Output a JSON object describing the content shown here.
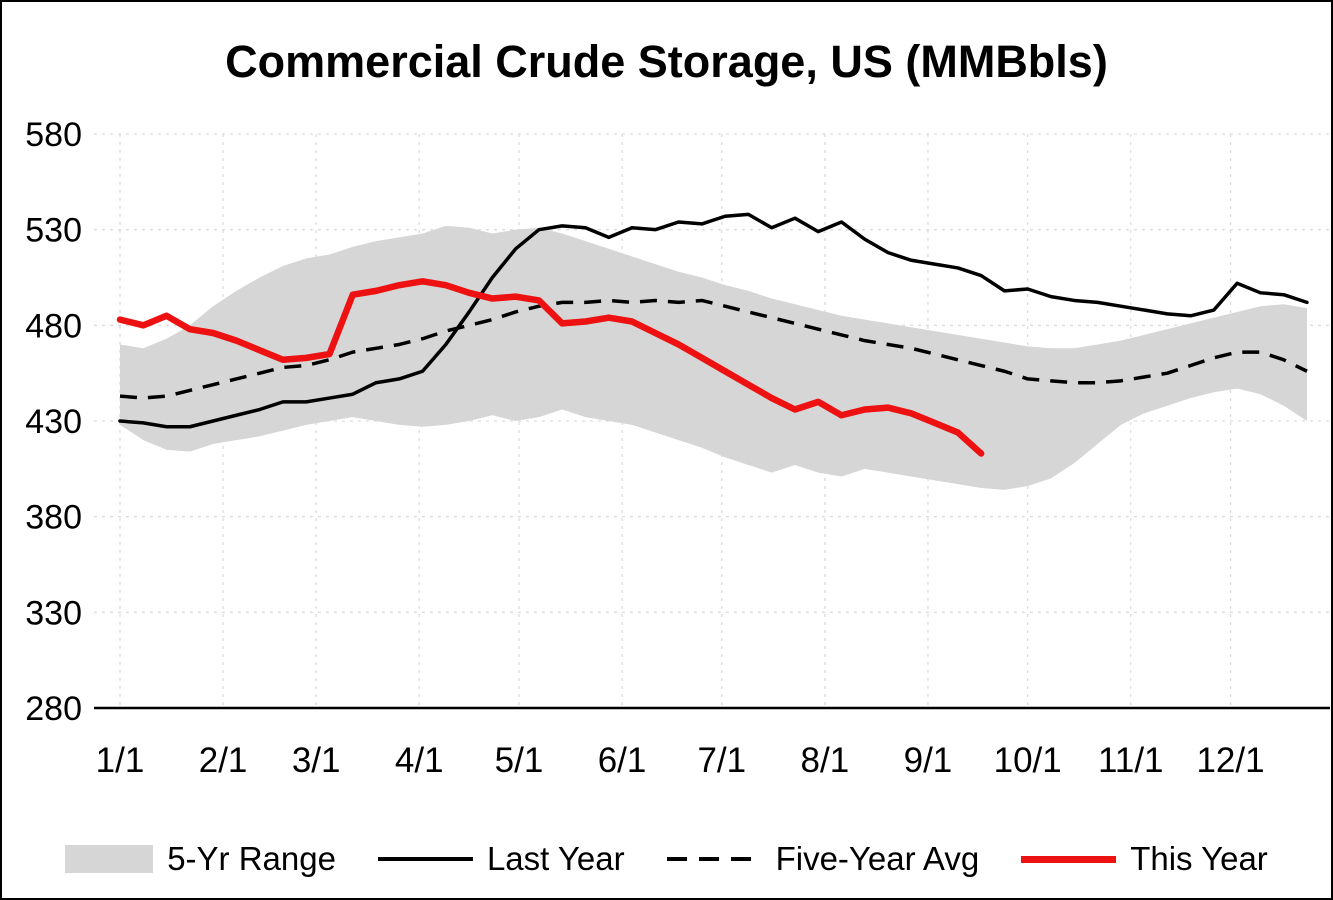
{
  "chart_data": {
    "type": "line",
    "title": "Commercial Crude Storage, US (MMBbls)",
    "xlabel": "",
    "ylabel": "",
    "ylim": [
      280,
      580
    ],
    "yticks": [
      280,
      330,
      380,
      430,
      480,
      530,
      580
    ],
    "xtick_labels": [
      "1/1",
      "2/1",
      "3/1",
      "4/1",
      "5/1",
      "6/1",
      "7/1",
      "8/1",
      "9/1",
      "10/1",
      "11/1",
      "12/1"
    ],
    "xtick_days": [
      1,
      32,
      60,
      91,
      121,
      152,
      182,
      213,
      244,
      274,
      305,
      335
    ],
    "x_axis_note": "weekly samples, day of year = 1 + 7 * index",
    "grid": "faint dashed horizontal and vertical gridlines",
    "legend_position": "bottom",
    "series": [
      {
        "name": "5-Yr Range",
        "kind": "band",
        "color": "#d6d6d6",
        "upper": [
          470,
          468,
          473,
          480,
          490,
          498,
          505,
          511,
          515,
          517,
          521,
          524,
          526,
          528,
          532,
          531,
          528,
          530,
          531,
          528,
          524,
          520,
          516,
          512,
          508,
          505,
          501,
          498,
          494,
          491,
          488,
          485,
          483,
          481,
          479,
          477,
          475,
          473,
          471,
          469,
          468,
          468,
          470,
          472,
          475,
          478,
          481,
          484,
          487,
          490,
          491,
          489
        ],
        "lower": [
          428,
          420,
          415,
          414,
          418,
          420,
          422,
          425,
          428,
          430,
          432,
          430,
          428,
          427,
          428,
          430,
          433,
          430,
          432,
          436,
          432,
          430,
          428,
          424,
          420,
          416,
          411,
          407,
          403,
          407,
          403,
          401,
          405,
          403,
          401,
          399,
          397,
          395,
          394,
          396,
          400,
          408,
          418,
          428,
          434,
          438,
          442,
          445,
          447,
          444,
          438,
          430
        ]
      },
      {
        "name": "Last Year",
        "kind": "line",
        "style": "solid",
        "color": "#000000",
        "width": 3.5,
        "values": [
          430,
          429,
          427,
          427,
          430,
          433,
          436,
          440,
          440,
          442,
          444,
          450,
          452,
          456,
          470,
          487,
          505,
          520,
          530,
          532,
          531,
          526,
          531,
          530,
          534,
          533,
          537,
          538,
          531,
          536,
          529,
          534,
          525,
          518,
          514,
          512,
          510,
          506,
          498,
          499,
          495,
          493,
          492,
          490,
          488,
          486,
          485,
          488,
          502,
          497,
          496,
          492
        ]
      },
      {
        "name": "Five-Year Avg",
        "kind": "line",
        "style": "dashed",
        "color": "#000000",
        "width": 3.5,
        "values": [
          443,
          442,
          443,
          446,
          449,
          452,
          455,
          458,
          459,
          462,
          466,
          468,
          470,
          473,
          477,
          480,
          483,
          487,
          490,
          492,
          492,
          493,
          492,
          493,
          492,
          493,
          490,
          487,
          484,
          481,
          478,
          475,
          472,
          470,
          468,
          465,
          462,
          459,
          456,
          452,
          451,
          450,
          450,
          451,
          453,
          455,
          459,
          463,
          466,
          466,
          462,
          456
        ]
      },
      {
        "name": "This Year",
        "kind": "line",
        "style": "solid",
        "color": "#ee1111",
        "width": 6.5,
        "values": [
          483,
          480,
          485,
          478,
          476,
          472,
          467,
          462,
          463,
          465,
          496,
          498,
          501,
          503,
          501,
          497,
          494,
          495,
          493,
          481,
          482,
          484,
          482,
          476,
          470,
          463,
          456,
          449,
          442,
          436,
          440,
          433,
          436,
          437,
          434,
          429,
          424,
          413
        ]
      }
    ]
  }
}
